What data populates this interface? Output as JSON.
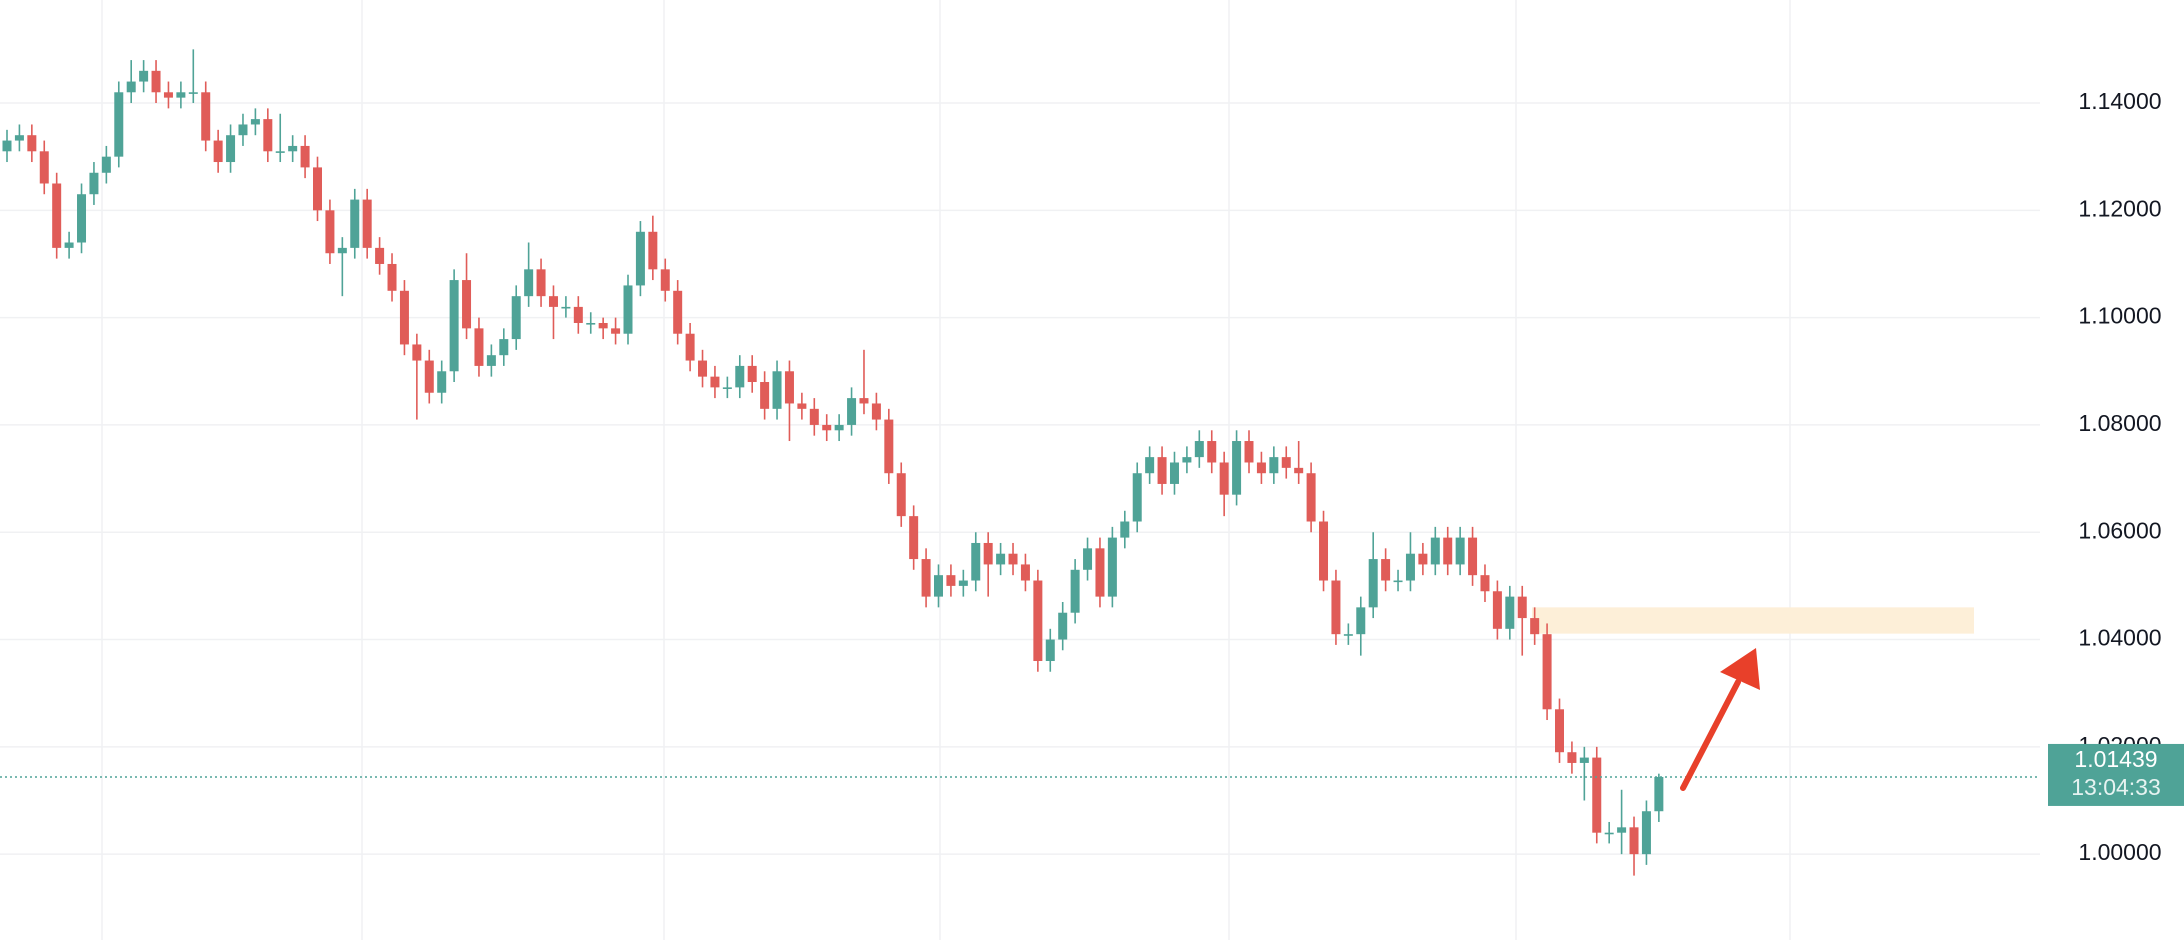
{
  "chart_data": {
    "type": "candlestick",
    "up_color": "#4fa397",
    "down_color": "#e05c58",
    "ylim": [
      0.984,
      1.1592
    ],
    "yticks": [
      {
        "value": 1.0,
        "label": "1.00000"
      },
      {
        "value": 1.02,
        "label": "1.02000"
      },
      {
        "value": 1.04,
        "label": "1.04000"
      },
      {
        "value": 1.06,
        "label": "1.06000"
      },
      {
        "value": 1.08,
        "label": "1.08000"
      },
      {
        "value": 1.1,
        "label": "1.10000"
      },
      {
        "value": 1.12,
        "label": "1.12000"
      },
      {
        "value": 1.14,
        "label": "1.14000"
      }
    ],
    "grid": true,
    "open": [
      1.131,
      1.133,
      1.134,
      1.131,
      1.125,
      1.113,
      1.114,
      1.123,
      1.127,
      1.13,
      1.142,
      1.144,
      1.146,
      1.142,
      1.141,
      1.142,
      1.142,
      1.133,
      1.129,
      1.134,
      1.136,
      1.137,
      1.131,
      1.131,
      1.132,
      1.128,
      1.12,
      1.112,
      1.113,
      1.122,
      1.113,
      1.11,
      1.105,
      1.095,
      1.092,
      1.086,
      1.09,
      1.107,
      1.098,
      1.091,
      1.093,
      1.096,
      1.104,
      1.109,
      1.104,
      1.102,
      1.102,
      1.099,
      1.099,
      1.098,
      1.097,
      1.106,
      1.116,
      1.109,
      1.105,
      1.097,
      1.092,
      1.089,
      1.087,
      1.087,
      1.091,
      1.088,
      1.083,
      1.09,
      1.084,
      1.083,
      1.08,
      1.079,
      1.08,
      1.085,
      1.084,
      1.081,
      1.071,
      1.063,
      1.055,
      1.048,
      1.052,
      1.05,
      1.051,
      1.058,
      1.054,
      1.056,
      1.054,
      1.051,
      1.036,
      1.04,
      1.045,
      1.053,
      1.057,
      1.048,
      1.059,
      1.062,
      1.071,
      1.074,
      1.069,
      1.073,
      1.074,
      1.077,
      1.073,
      1.067,
      1.077,
      1.073,
      1.071,
      1.074,
      1.072,
      1.071,
      1.062,
      1.051,
      1.041,
      1.041,
      1.046,
      1.055,
      1.051,
      1.051,
      1.056,
      1.054,
      1.059,
      1.054,
      1.059,
      1.052,
      1.049,
      1.042,
      1.048,
      1.044,
      1.041,
      1.027,
      1.019,
      1.017,
      1.018,
      1.004,
      1.004,
      1.005,
      1.0,
      1.008
    ],
    "high": [
      1.135,
      1.136,
      1.136,
      1.133,
      1.127,
      1.116,
      1.125,
      1.129,
      1.132,
      1.144,
      1.148,
      1.148,
      1.148,
      1.144,
      1.144,
      1.15,
      1.144,
      1.135,
      1.136,
      1.138,
      1.139,
      1.139,
      1.138,
      1.134,
      1.134,
      1.13,
      1.122,
      1.115,
      1.124,
      1.124,
      1.115,
      1.112,
      1.107,
      1.097,
      1.094,
      1.092,
      1.109,
      1.112,
      1.1,
      1.095,
      1.098,
      1.106,
      1.114,
      1.111,
      1.106,
      1.104,
      1.104,
      1.101,
      1.1,
      1.1,
      1.108,
      1.118,
      1.119,
      1.111,
      1.107,
      1.099,
      1.094,
      1.091,
      1.089,
      1.093,
      1.093,
      1.09,
      1.092,
      1.092,
      1.086,
      1.085,
      1.082,
      1.082,
      1.087,
      1.094,
      1.086,
      1.083,
      1.073,
      1.065,
      1.057,
      1.054,
      1.054,
      1.053,
      1.06,
      1.06,
      1.058,
      1.058,
      1.056,
      1.053,
      1.042,
      1.047,
      1.055,
      1.059,
      1.059,
      1.061,
      1.064,
      1.073,
      1.076,
      1.076,
      1.075,
      1.076,
      1.079,
      1.079,
      1.075,
      1.079,
      1.079,
      1.075,
      1.076,
      1.076,
      1.077,
      1.073,
      1.064,
      1.053,
      1.043,
      1.048,
      1.06,
      1.057,
      1.053,
      1.06,
      1.058,
      1.061,
      1.061,
      1.061,
      1.061,
      1.054,
      1.051,
      1.05,
      1.05,
      1.046,
      1.043,
      1.029,
      1.021,
      1.02,
      1.02,
      1.006,
      1.012,
      1.007,
      1.01,
      1.015
    ],
    "low": [
      1.129,
      1.131,
      1.129,
      1.123,
      1.111,
      1.111,
      1.112,
      1.121,
      1.125,
      1.128,
      1.14,
      1.142,
      1.14,
      1.139,
      1.139,
      1.14,
      1.131,
      1.127,
      1.127,
      1.132,
      1.134,
      1.129,
      1.129,
      1.129,
      1.126,
      1.118,
      1.11,
      1.104,
      1.111,
      1.111,
      1.108,
      1.103,
      1.093,
      1.081,
      1.084,
      1.084,
      1.088,
      1.096,
      1.089,
      1.089,
      1.091,
      1.094,
      1.102,
      1.102,
      1.096,
      1.1,
      1.097,
      1.097,
      1.096,
      1.095,
      1.095,
      1.104,
      1.107,
      1.103,
      1.095,
      1.09,
      1.087,
      1.085,
      1.085,
      1.085,
      1.086,
      1.081,
      1.081,
      1.077,
      1.081,
      1.078,
      1.077,
      1.077,
      1.078,
      1.082,
      1.079,
      1.069,
      1.061,
      1.053,
      1.046,
      1.046,
      1.048,
      1.048,
      1.049,
      1.048,
      1.052,
      1.052,
      1.049,
      1.034,
      1.034,
      1.038,
      1.043,
      1.051,
      1.046,
      1.046,
      1.057,
      1.06,
      1.069,
      1.067,
      1.067,
      1.071,
      1.072,
      1.071,
      1.063,
      1.065,
      1.071,
      1.069,
      1.069,
      1.07,
      1.069,
      1.06,
      1.049,
      1.039,
      1.039,
      1.037,
      1.044,
      1.049,
      1.049,
      1.049,
      1.052,
      1.052,
      1.052,
      1.052,
      1.05,
      1.047,
      1.04,
      1.04,
      1.037,
      1.039,
      1.025,
      1.017,
      1.015,
      1.01,
      1.002,
      1.002,
      1.0,
      0.996,
      0.998,
      1.006
    ],
    "close": [
      1.133,
      1.134,
      1.131,
      1.125,
      1.113,
      1.114,
      1.123,
      1.127,
      1.13,
      1.142,
      1.144,
      1.146,
      1.142,
      1.141,
      1.142,
      1.142,
      1.133,
      1.129,
      1.134,
      1.136,
      1.137,
      1.131,
      1.131,
      1.132,
      1.128,
      1.12,
      1.112,
      1.113,
      1.122,
      1.113,
      1.11,
      1.105,
      1.095,
      1.092,
      1.086,
      1.09,
      1.107,
      1.098,
      1.091,
      1.093,
      1.096,
      1.104,
      1.109,
      1.104,
      1.102,
      1.102,
      1.099,
      1.099,
      1.098,
      1.097,
      1.106,
      1.116,
      1.109,
      1.105,
      1.097,
      1.092,
      1.089,
      1.087,
      1.087,
      1.091,
      1.088,
      1.083,
      1.09,
      1.084,
      1.083,
      1.08,
      1.079,
      1.08,
      1.085,
      1.084,
      1.081,
      1.071,
      1.063,
      1.055,
      1.048,
      1.052,
      1.05,
      1.051,
      1.058,
      1.054,
      1.056,
      1.054,
      1.051,
      1.036,
      1.04,
      1.045,
      1.053,
      1.057,
      1.048,
      1.059,
      1.062,
      1.071,
      1.074,
      1.069,
      1.073,
      1.074,
      1.077,
      1.073,
      1.067,
      1.077,
      1.073,
      1.071,
      1.074,
      1.072,
      1.071,
      1.062,
      1.051,
      1.041,
      1.041,
      1.046,
      1.055,
      1.051,
      1.051,
      1.056,
      1.054,
      1.059,
      1.054,
      1.059,
      1.052,
      1.049,
      1.042,
      1.048,
      1.044,
      1.041,
      1.027,
      1.019,
      1.017,
      1.018,
      1.004,
      1.004,
      1.005,
      1.0,
      1.008,
      1.01439
    ],
    "last_label": "1.01439",
    "countdown": "13:04:33",
    "zone": {
      "low": 1.0411,
      "high": 1.046
    }
  }
}
